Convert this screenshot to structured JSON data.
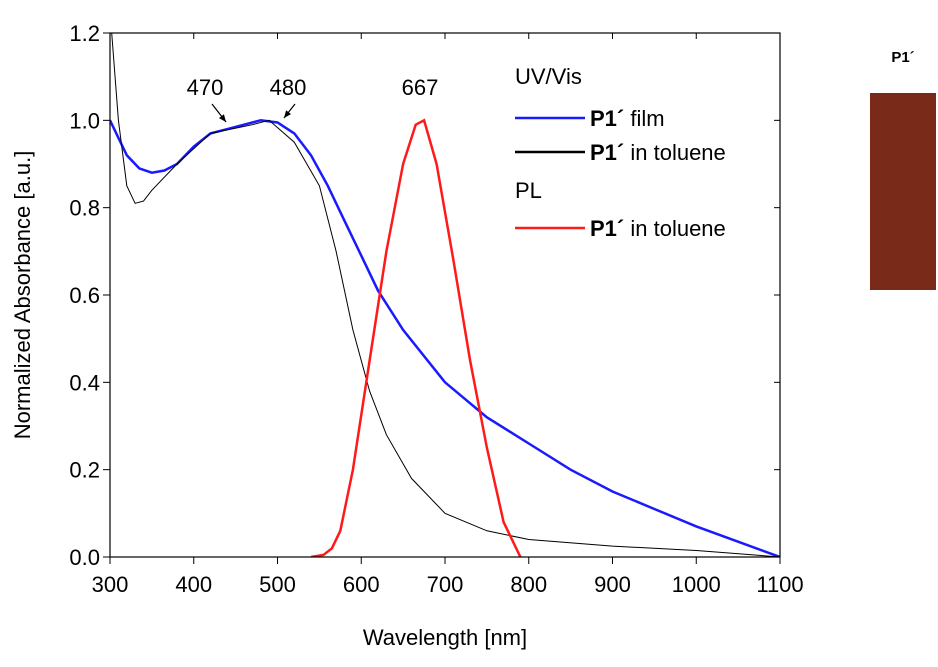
{
  "chart_data": {
    "type": "line",
    "xlabel": "Wavelength [nm]",
    "ylabel": "Normalized Absorbance [a.u.]",
    "xlim": [
      300,
      1100
    ],
    "xticks": [
      300,
      400,
      500,
      600,
      700,
      800,
      900,
      1000,
      1100
    ],
    "ylim": [
      0,
      1.2
    ],
    "yticks": [
      {
        "value": 0,
        "label": "0.0"
      },
      0.2,
      0.4,
      0.6,
      0.8,
      {
        "value": 1,
        "label": "1.0"
      },
      1.2
    ],
    "legend_groups": [
      "UV/Vis",
      "PL"
    ],
    "annotations": [
      "470",
      "480",
      "667"
    ],
    "series": [
      {
        "name": "P1´ film",
        "color": "#1a1aff",
        "x": [
          300,
          310,
          320,
          335,
          350,
          365,
          380,
          400,
          420,
          440,
          460,
          480,
          500,
          520,
          540,
          560,
          580,
          600,
          620,
          650,
          700,
          750,
          800,
          850,
          900,
          950,
          1000,
          1050,
          1100
        ],
        "y": [
          1.0,
          0.96,
          0.92,
          0.89,
          0.88,
          0.885,
          0.9,
          0.94,
          0.97,
          0.98,
          0.99,
          1.0,
          0.995,
          0.97,
          0.92,
          0.85,
          0.77,
          0.69,
          0.61,
          0.52,
          0.4,
          0.32,
          0.26,
          0.2,
          0.15,
          0.11,
          0.07,
          0.035,
          0.0
        ]
      },
      {
        "name": "P1´ in toluene",
        "color": "#000000",
        "x": [
          302,
          310,
          320,
          330,
          340,
          350,
          380,
          420,
          470,
          490,
          520,
          550,
          570,
          590,
          610,
          630,
          660,
          700,
          750,
          800,
          900,
          1000,
          1100
        ],
        "y": [
          1.2,
          1.0,
          0.85,
          0.81,
          0.815,
          0.84,
          0.9,
          0.97,
          0.99,
          1.0,
          0.95,
          0.85,
          0.7,
          0.52,
          0.38,
          0.28,
          0.18,
          0.1,
          0.06,
          0.04,
          0.025,
          0.015,
          0.0
        ]
      },
      {
        "name": "P1´ in toluene",
        "color": "#ff1a1a",
        "x": [
          540,
          555,
          565,
          575,
          590,
          610,
          630,
          650,
          665,
          675,
          690,
          710,
          730,
          750,
          770,
          790
        ],
        "y": [
          0.0,
          0.005,
          0.02,
          0.06,
          0.2,
          0.45,
          0.7,
          0.9,
          0.99,
          1.0,
          0.9,
          0.68,
          0.45,
          0.25,
          0.08,
          0.0
        ]
      }
    ]
  },
  "sample": {
    "label": "P1´",
    "color": "#7a2a18"
  }
}
